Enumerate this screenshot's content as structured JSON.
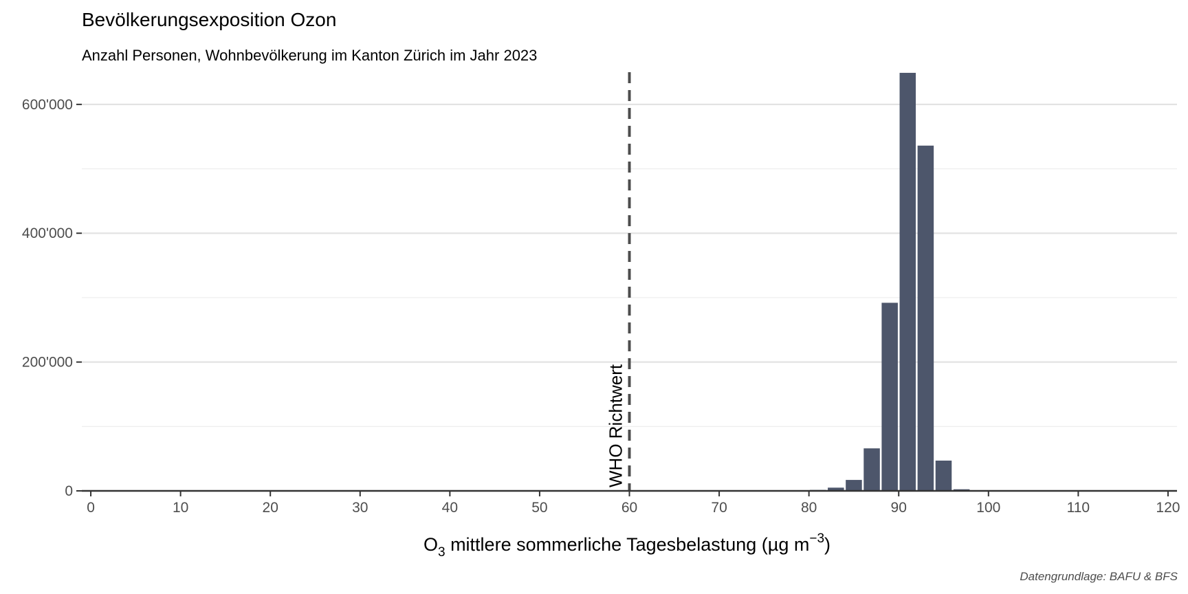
{
  "chart_data": {
    "type": "bar",
    "title": "Bevölkerungsexposition Ozon",
    "subtitle": "Anzahl Personen, Wohnbevölkerung im Kanton Zürich im Jahr 2023",
    "xlabel_main": "O",
    "xlabel_sub": "3",
    "xlabel_rest": " mittlere sommerliche Tagesbelastung (µg m",
    "xlabel_sup": "−3",
    "xlabel_end": ")",
    "caption": "Datengrundlage: BAFU & BFS",
    "xlim": [
      -1,
      121
    ],
    "ylim": [
      0,
      650000
    ],
    "x_ticks": [
      0,
      10,
      20,
      30,
      40,
      50,
      60,
      70,
      80,
      90,
      100,
      110,
      120
    ],
    "x_tick_labels": [
      "0",
      "10",
      "20",
      "30",
      "40",
      "50",
      "60",
      "70",
      "80",
      "90",
      "100",
      "110",
      "120"
    ],
    "y_ticks": [
      0,
      200000,
      400000,
      600000
    ],
    "y_tick_labels": [
      "0",
      "200'000",
      "400'000",
      "600'000"
    ],
    "y_minor_ticks": [
      100000,
      300000,
      500000
    ],
    "grid": true,
    "bar_color": "#4d566b",
    "bin_width": 2,
    "x": [
      79,
      81,
      83,
      85,
      87,
      89,
      91,
      93,
      95,
      97
    ],
    "values": [
      800,
      1500,
      5000,
      17000,
      66000,
      292000,
      649000,
      536000,
      47000,
      2500
    ],
    "reference_line": {
      "x": 60,
      "label": "WHO Richtwert",
      "style": "dashed",
      "color": "#4d4d4d"
    }
  }
}
